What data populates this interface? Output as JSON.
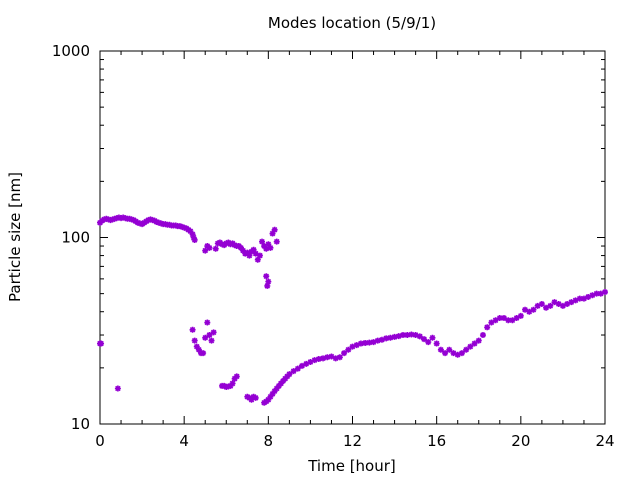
{
  "chart_data": {
    "type": "scatter",
    "title": "Modes location (5/9/1)",
    "xlabel": "Time [hour]",
    "ylabel": "Particle size [nm]",
    "x_ticks": [
      0,
      4,
      8,
      12,
      16,
      20,
      24
    ],
    "y_ticks": [
      10,
      100,
      1000
    ],
    "xlim": [
      0,
      24
    ],
    "ylim": [
      10,
      1000
    ],
    "y_scale": "log",
    "grid": false,
    "legend": "none",
    "marker_color": "#9400d3",
    "series": [
      {
        "x": [
          0.0,
          0.1,
          0.2,
          0.3,
          0.4,
          0.5,
          0.6,
          0.7,
          0.8,
          0.9,
          1.0,
          1.1,
          1.2,
          1.3,
          1.4,
          1.5,
          1.6,
          1.7,
          1.8,
          1.9,
          2.0,
          2.1,
          2.2,
          2.3,
          2.4,
          2.5,
          2.6,
          2.7,
          2.8,
          2.9,
          3.0,
          3.1,
          3.2,
          3.3,
          3.4,
          3.5,
          3.6,
          3.7,
          3.8,
          3.9,
          4.0,
          4.1,
          4.2,
          4.3,
          4.4,
          4.45,
          4.5
        ],
        "y": [
          120,
          123,
          125,
          126,
          125,
          124,
          125,
          126,
          127,
          128,
          127,
          128,
          127,
          126,
          126,
          125,
          124,
          122,
          120,
          119,
          118,
          120,
          122,
          124,
          125,
          124,
          123,
          121,
          120,
          119,
          118,
          118,
          117,
          117,
          116,
          116,
          116,
          115,
          115,
          114,
          113,
          112,
          110,
          108,
          104,
          100,
          97
        ]
      },
      {
        "x": [
          0.0,
          0.05
        ],
        "y": [
          27,
          27
        ]
      },
      {
        "x": [
          0.85
        ],
        "y": [
          15.5
        ]
      },
      {
        "x": [
          4.4,
          4.5,
          4.6,
          4.7,
          4.8,
          4.9,
          5.0,
          5.1,
          5.2,
          5.3,
          5.4
        ],
        "y": [
          32,
          28,
          26,
          25,
          24,
          24,
          29,
          35,
          30,
          28,
          31
        ]
      },
      {
        "x": [
          5.0,
          5.1,
          5.2,
          5.5,
          5.6,
          5.7,
          5.8,
          5.9,
          6.0,
          6.1,
          6.2,
          6.3,
          6.4,
          6.5,
          6.6,
          6.7,
          6.8,
          6.9,
          7.0,
          7.1,
          7.2,
          7.3,
          7.4,
          7.5,
          7.6,
          7.7,
          7.8,
          7.9,
          8.0,
          8.1,
          8.2,
          8.3,
          8.4
        ],
        "y": [
          85,
          90,
          88,
          87,
          93,
          94,
          92,
          91,
          93,
          94,
          92,
          93,
          91,
          90,
          90,
          88,
          85,
          82,
          83,
          80,
          84,
          86,
          82,
          76,
          80,
          95,
          90,
          87,
          92,
          88,
          105,
          110,
          95
        ]
      },
      {
        "x": [
          7.9,
          8.0,
          7.95
        ],
        "y": [
          62,
          58,
          55
        ]
      },
      {
        "x": [
          5.8,
          5.9,
          6.0,
          6.1,
          6.2,
          6.3,
          6.4,
          6.5
        ],
        "y": [
          16,
          16,
          15.8,
          15.9,
          16,
          16.5,
          17.5,
          18
        ]
      },
      {
        "x": [
          7.0,
          7.1,
          7.2,
          7.3,
          7.4,
          7.8,
          7.9,
          8.0,
          8.1,
          8.2,
          8.3,
          8.4,
          8.5,
          8.6,
          8.7,
          8.8,
          8.9,
          9.0,
          9.2,
          9.4,
          9.6,
          9.8,
          10.0,
          10.2,
          10.4,
          10.6,
          10.8,
          11.0,
          11.2,
          11.4,
          11.6,
          11.8,
          12.0,
          12.2,
          12.4,
          12.6,
          12.8,
          13.0,
          13.2,
          13.4,
          13.6,
          13.8,
          14.0,
          14.2,
          14.4,
          14.6,
          14.8,
          15.0,
          15.2,
          15.4,
          15.6,
          15.8,
          16.0,
          16.2,
          16.4,
          16.6,
          16.8,
          17.0,
          17.2,
          17.4,
          17.6,
          17.8,
          18.0,
          18.2,
          18.4,
          18.6,
          18.8,
          19.0,
          19.2,
          19.4,
          19.6,
          19.8,
          20.0,
          20.2,
          20.4,
          20.6,
          20.8,
          21.0,
          21.2,
          21.4,
          21.6,
          21.8,
          22.0,
          22.2,
          22.4,
          22.6,
          22.8,
          23.0,
          23.2,
          23.4,
          23.6,
          23.8,
          24.0
        ],
        "y": [
          14,
          13.8,
          13.5,
          14,
          13.8,
          13,
          13.2,
          13.5,
          14,
          14.5,
          15,
          15.5,
          16,
          16.5,
          17,
          17.5,
          18,
          18.5,
          19.2,
          19.8,
          20.5,
          21,
          21.5,
          22,
          22.3,
          22.5,
          22.8,
          23,
          22.5,
          22.8,
          24,
          25,
          26,
          26.5,
          27,
          27.2,
          27.3,
          27.5,
          28,
          28.3,
          28.8,
          29,
          29.3,
          29.6,
          30,
          30,
          30.2,
          30,
          29.5,
          28.5,
          27.5,
          29,
          27,
          25,
          24,
          25,
          24,
          23.5,
          24,
          25,
          26,
          27,
          28,
          30,
          33,
          35,
          36,
          37,
          37,
          36,
          36,
          37,
          38,
          41,
          40,
          41,
          43,
          44,
          42,
          43,
          45,
          44,
          43,
          44,
          45,
          46,
          47,
          47,
          48,
          49,
          50,
          50,
          51
        ]
      }
    ]
  }
}
